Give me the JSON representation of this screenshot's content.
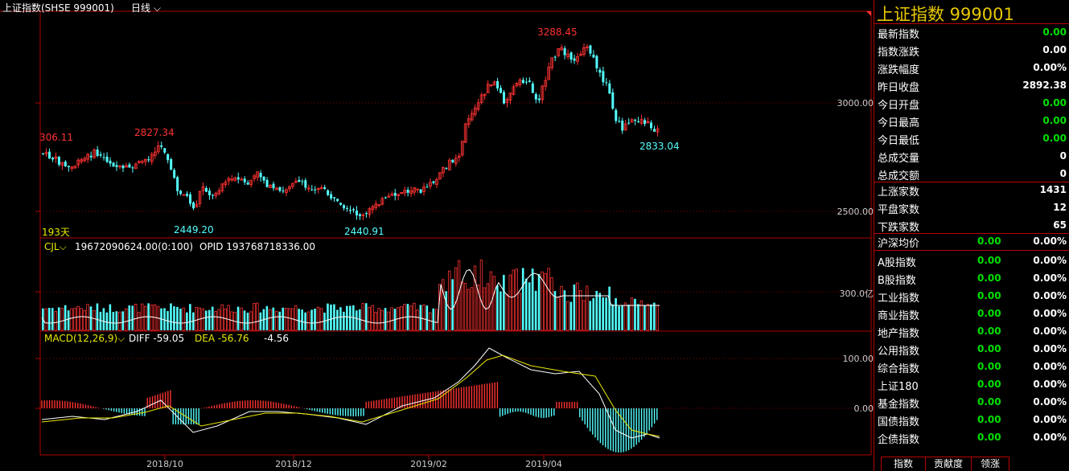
{
  "header": {
    "title": "上证指数(SHSE 999001)",
    "period": "日线"
  },
  "main_chart": {
    "y_ticks": [
      "3000.00",
      "2500.00"
    ],
    "high_label": "3288.45",
    "labels_red": [
      "306.11",
      "2827.34"
    ],
    "labels_cyan": [
      "2449.20",
      "2440.91",
      "2833.04"
    ],
    "days_label": "193天"
  },
  "volume_chart": {
    "name": "CJL",
    "value": "19672090624.00(0:100)",
    "opid": "OPID 193768718336.00",
    "y_tick": "300.0亿"
  },
  "macd_chart": {
    "name": "MACD(12,26,9)",
    "diff": "DIFF -59.05",
    "dea": "DEA -56.76",
    "macd": "-4.56",
    "y_ticks": [
      "100.00",
      "0.00"
    ]
  },
  "x_axis": [
    "2018/10",
    "2018/12",
    "2019/02",
    "2019/04"
  ],
  "panel": {
    "title": "上证指数  999001",
    "quotes": [
      {
        "label": "最新指数",
        "value": "0.00",
        "color": "green"
      },
      {
        "label": "指数涨跌",
        "value": "0.00",
        "color": "white"
      },
      {
        "label": "涨跌幅度",
        "value": "0.00%",
        "color": "white"
      },
      {
        "label": "昨日收盘",
        "value": "2892.38",
        "color": "white"
      },
      {
        "label": "今日开盘",
        "value": "0.00",
        "color": "green"
      },
      {
        "label": "今日最高",
        "value": "0.00",
        "color": "green"
      },
      {
        "label": "今日最低",
        "value": "0.00",
        "color": "green"
      },
      {
        "label": "总成交量",
        "value": "0",
        "color": "white"
      },
      {
        "label": "总成交额",
        "value": "0",
        "color": "white"
      }
    ],
    "breadth": [
      {
        "label": "上涨家数",
        "value": "1431"
      },
      {
        "label": "平盘家数",
        "value": "12"
      },
      {
        "label": "下跌家数",
        "value": "65"
      }
    ],
    "avg": {
      "label": "沪深均价",
      "v1": "0.00",
      "v2": "0.00%"
    },
    "indices": [
      {
        "label": "A股指数",
        "v1": "0.00",
        "v2": "0.00%"
      },
      {
        "label": "B股指数",
        "v1": "0.00",
        "v2": "0.00%"
      },
      {
        "label": "工业指数",
        "v1": "0.00",
        "v2": "0.00%"
      },
      {
        "label": "商业指数",
        "v1": "0.00",
        "v2": "0.00%"
      },
      {
        "label": "地产指数",
        "v1": "0.00",
        "v2": "0.00%"
      },
      {
        "label": "公用指数",
        "v1": "0.00",
        "v2": "0.00%"
      },
      {
        "label": "综合指数",
        "v1": "0.00",
        "v2": "0.00%"
      },
      {
        "label": "上证180",
        "v1": "0.00",
        "v2": "0.00%"
      },
      {
        "label": "基金指数",
        "v1": "0.00",
        "v2": "0.00%"
      },
      {
        "label": "国债指数",
        "v1": "0.00",
        "v2": "0.00%"
      },
      {
        "label": "企债指数",
        "v1": "0.00",
        "v2": "0.00%"
      }
    ]
  },
  "tabs": [
    "指数",
    "贡献度",
    "领涨"
  ],
  "colors": {
    "up": "#ff3232",
    "down": "#54ffff",
    "dea": "#e8e800",
    "accent": "#e8c800",
    "border": "#b00000",
    "green": "#00e000"
  }
}
